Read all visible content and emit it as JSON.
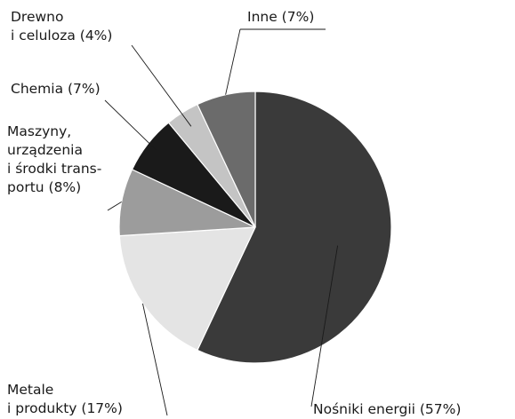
{
  "chart_data": {
    "type": "pie",
    "title": "",
    "start": "12 o'clock",
    "direction": "clockwise",
    "slices": [
      {
        "name": "Nośniki energii",
        "value": 57,
        "color": "#3a3a3a",
        "label_lines": [
          "Nośniki energii (57%)"
        ],
        "label_align": "start"
      },
      {
        "name": "Metale i produkty",
        "value": 17,
        "color": "#e4e4e4",
        "label_lines": [
          "Metale",
          "i produkty (17%)"
        ],
        "label_align": "start"
      },
      {
        "name": "Maszyny, urządzenia i środki transportu",
        "value": 8,
        "color": "#9c9c9c",
        "label_lines": [
          "Maszyny,",
          "urządzenia",
          "i środki trans-",
          "portu (8%)"
        ],
        "label_align": "start"
      },
      {
        "name": "Chemia",
        "value": 7,
        "color": "#1a1a1a",
        "label_lines": [
          "Chemia (7%)"
        ],
        "label_align": "start"
      },
      {
        "name": "Drewno i celuloza",
        "value": 4,
        "color": "#c4c4c4",
        "label_lines": [
          "Drewno",
          "i celuloza (4%)"
        ],
        "label_align": "start"
      },
      {
        "name": "Inne",
        "value": 7,
        "color": "#6b6b6b",
        "label_lines": [
          "Inne (7%)"
        ],
        "label_align": "start"
      }
    ]
  }
}
